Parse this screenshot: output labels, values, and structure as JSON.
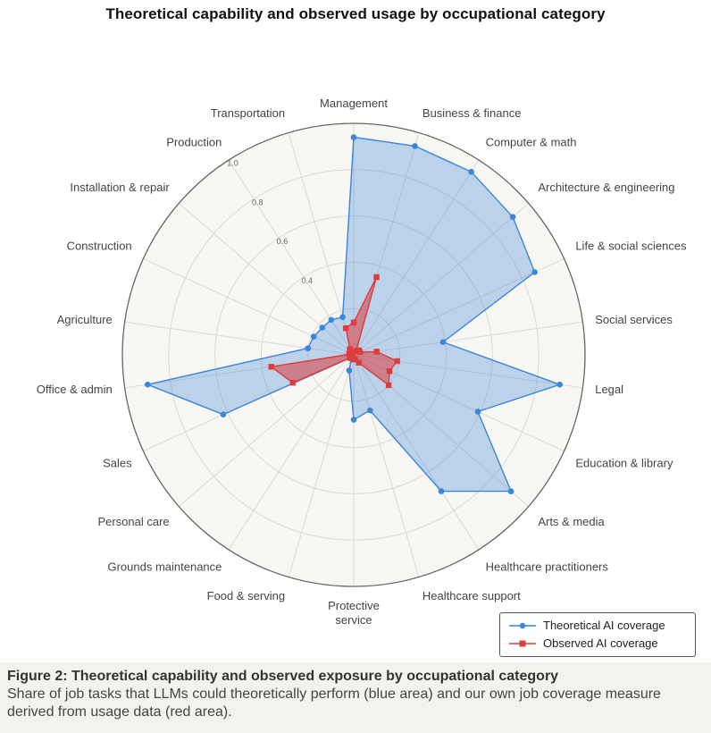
{
  "header": {
    "title": "Theoretical capability and observed usage by occupational category"
  },
  "chart_data": {
    "type": "radar",
    "title": "Theoretical capability and observed usage by occupational category",
    "categories": [
      "Management",
      "Business & finance",
      "Computer & math",
      "Architecture & engineering",
      "Life & social sciences",
      "Social services",
      "Legal",
      "Education & library",
      "Arts & media",
      "Healthcare practitioners",
      "Healthcare support",
      "Protective service",
      "Food & serving",
      "Grounds maintenance",
      "Personal care",
      "Sales",
      "Office & admin",
      "Agriculture",
      "Construction",
      "Installation & repair",
      "Production",
      "Transportation"
    ],
    "category_labels": [
      [
        "Management"
      ],
      [
        "Business & finance"
      ],
      [
        "Computer & math"
      ],
      [
        "Architecture & engineering"
      ],
      [
        "Life & social sciences"
      ],
      [
        "Social services"
      ],
      [
        "Legal"
      ],
      [
        "Education & library"
      ],
      [
        "Arts & media"
      ],
      [
        "Healthcare practitioners"
      ],
      [
        "Healthcare support"
      ],
      [
        "Protective",
        "service"
      ],
      [
        "Food & serving"
      ],
      [
        "Grounds maintenance"
      ],
      [
        "Personal care"
      ],
      [
        "Sales"
      ],
      [
        "Office & admin"
      ],
      [
        "Agriculture"
      ],
      [
        "Construction"
      ],
      [
        "Installation & repair"
      ],
      [
        "Production"
      ],
      [
        "Transportation"
      ]
    ],
    "series": [
      {
        "name": "Theoretical AI coverage",
        "color": "#3a86d8",
        "values": [
          0.94,
          0.94,
          0.94,
          0.91,
          0.86,
          0.39,
          0.9,
          0.59,
          0.9,
          0.7,
          0.25,
          0.28,
          0.07,
          0.02,
          0.02,
          0.62,
          0.9,
          0.2,
          0.19,
          0.18,
          0.18,
          0.17
        ]
      },
      {
        "name": "Observed AI coverage",
        "color": "#dc3d3d",
        "values": [
          0.14,
          0.35,
          0.02,
          0.03,
          0.03,
          0.1,
          0.19,
          0.17,
          0.2,
          0.04,
          0.02,
          0.02,
          0.01,
          0.01,
          0.02,
          0.29,
          0.36,
          0.02,
          0.02,
          0.02,
          0.03,
          0.12
        ]
      }
    ],
    "rlim": [
      0,
      1.0
    ],
    "ticks": [
      "0.4",
      "0.6",
      "0.8",
      "1.0"
    ],
    "legend_position": "bottom-right"
  },
  "legend": {
    "items": [
      {
        "label": "Theoretical AI coverage",
        "color": "#3a86d8",
        "marker": "circle"
      },
      {
        "label": "Observed AI coverage",
        "color": "#dc3d3d",
        "marker": "square"
      }
    ]
  },
  "caption": {
    "title": "Figure 2: Theoretical capability and observed exposure by occupational category",
    "text": "Share of job tasks that LLMs could theoretically perform (blue area) and our own job coverage measure derived from usage data (red area)."
  }
}
